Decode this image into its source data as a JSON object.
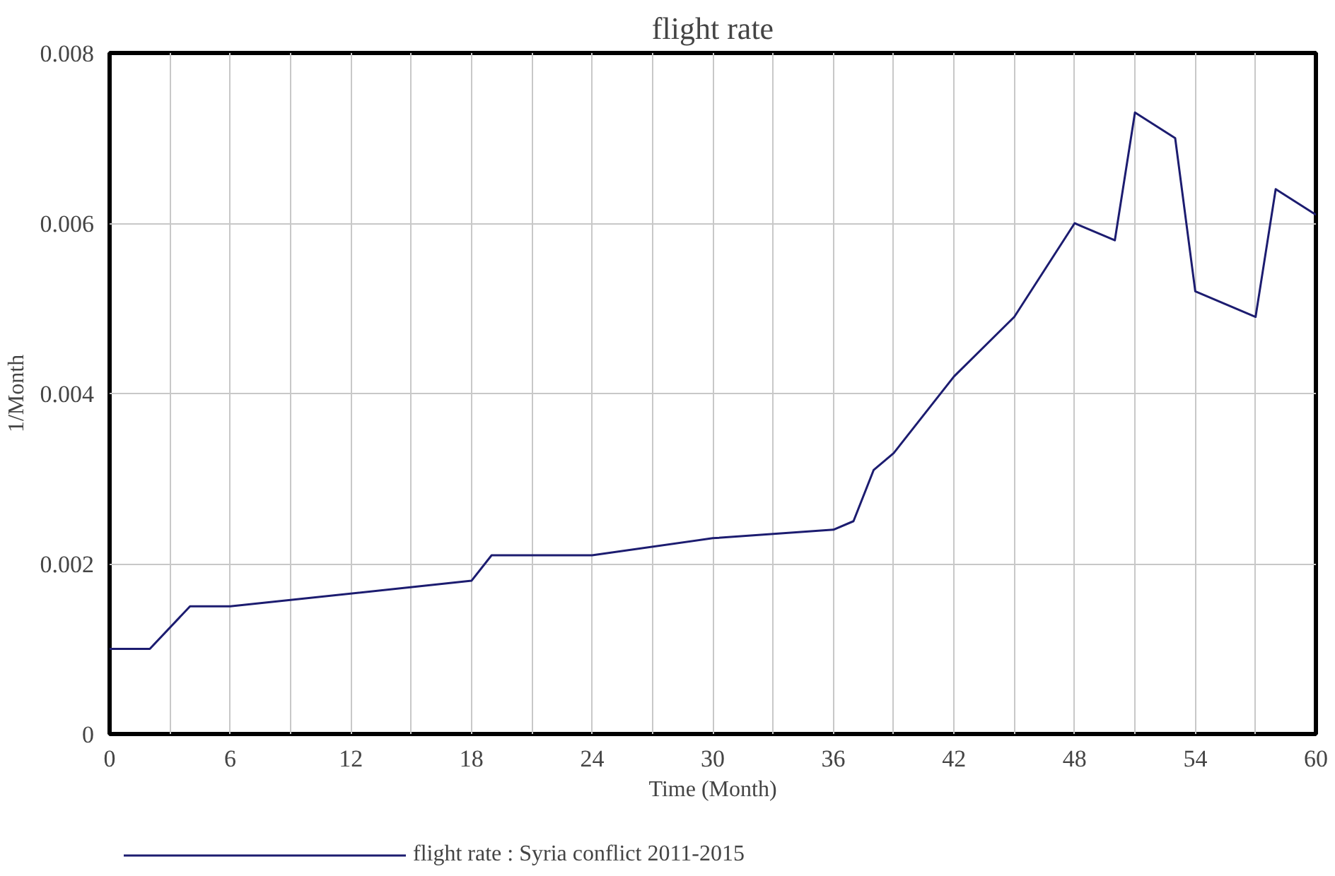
{
  "chart_data": {
    "type": "line",
    "title": "flight rate",
    "xlabel": "Time (Month)",
    "ylabel": "1/Month",
    "xlim": [
      0,
      60
    ],
    "ylim": [
      0,
      0.008
    ],
    "xticks": [
      0,
      {
        "value": 3,
        "label": null
      },
      6,
      {
        "value": 9,
        "label": null
      },
      12,
      {
        "value": 15,
        "label": null
      },
      18,
      {
        "value": 21,
        "label": null
      },
      24,
      {
        "value": 27,
        "label": null
      },
      30,
      {
        "value": 33,
        "label": null
      },
      36,
      {
        "value": 39,
        "label": null
      },
      42,
      {
        "value": 45,
        "label": null
      },
      48,
      {
        "value": 51,
        "label": null
      },
      54,
      {
        "value": 57,
        "label": null
      },
      60
    ],
    "yticks": [
      0,
      0.002,
      0.004,
      0.006,
      0.008
    ],
    "grid": true,
    "legend": "bottom",
    "line_style": "solid",
    "x": [
      0,
      2,
      4,
      6,
      18,
      19,
      24,
      30,
      36,
      37,
      38,
      39,
      42,
      45,
      48,
      50,
      51,
      53,
      54,
      57,
      58,
      60
    ],
    "series": [
      {
        "name": "flight rate : Syria conflict 2011-2015",
        "color": "#1c1c70",
        "values": [
          0.001,
          0.001,
          0.0015,
          0.0015,
          0.0018,
          0.0021,
          0.0021,
          0.0023,
          0.0024,
          0.0025,
          0.0031,
          0.0033,
          0.0042,
          0.0049,
          0.006,
          0.0058,
          0.0073,
          0.007,
          0.0052,
          0.0049,
          0.0064,
          0.0061
        ]
      }
    ]
  }
}
